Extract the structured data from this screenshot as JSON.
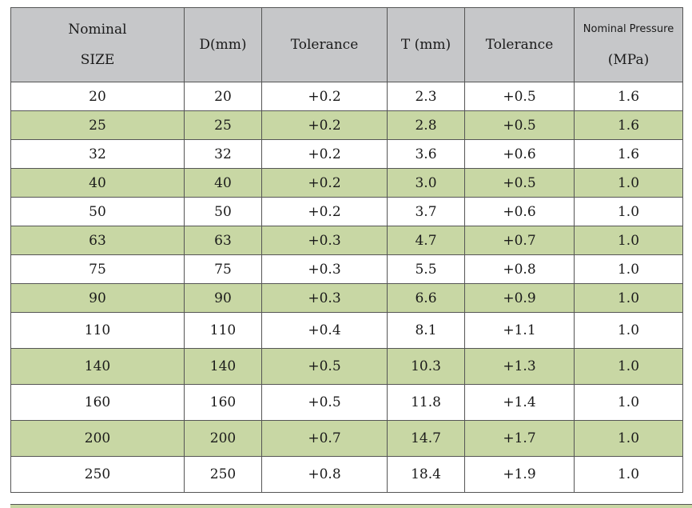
{
  "headers": {
    "size": [
      "Nominal",
      "SIZE"
    ],
    "d": "D(mm)",
    "tol1": "Tolerance",
    "t": "T (mm)",
    "tol2": "Tolerance",
    "pressure": [
      "Nominal Pressure",
      "(MPa)"
    ]
  },
  "rows": [
    [
      "20",
      "20",
      "+0.2",
      "2.3",
      "+0.5",
      "1.6"
    ],
    [
      "25",
      "25",
      "+0.2",
      "2.8",
      "+0.5",
      "1.6"
    ],
    [
      "32",
      "32",
      "+0.2",
      "3.6",
      "+0.6",
      "1.6"
    ],
    [
      "40",
      "40",
      "+0.2",
      "3.0",
      "+0.5",
      "1.0"
    ],
    [
      "50",
      "50",
      "+0.2",
      "3.7",
      "+0.6",
      "1.0"
    ],
    [
      "63",
      "63",
      "+0.3",
      "4.7",
      "+0.7",
      "1.0"
    ],
    [
      "75",
      "75",
      "+0.3",
      "5.5",
      "+0.8",
      "1.0"
    ],
    [
      "90",
      "90",
      "+0.3",
      "6.6",
      "+0.9",
      "1.0"
    ],
    [
      "110",
      "110",
      "+0.4",
      "8.1",
      "+1.1",
      "1.0"
    ],
    [
      "140",
      "140",
      "+0.5",
      "10.3",
      "+1.3",
      "1.0"
    ],
    [
      "160",
      "160",
      "+0.5",
      "11.8",
      "+1.4",
      "1.0"
    ],
    [
      "200",
      "200",
      "+0.7",
      "14.7",
      "+1.7",
      "1.0"
    ],
    [
      "250",
      "250",
      "+0.8",
      "18.4",
      "+1.9",
      "1.0"
    ]
  ],
  "colors": {
    "header_bg": "#c6c7c9",
    "stripe_bg": "#c8d7a4",
    "border": "#555555"
  }
}
